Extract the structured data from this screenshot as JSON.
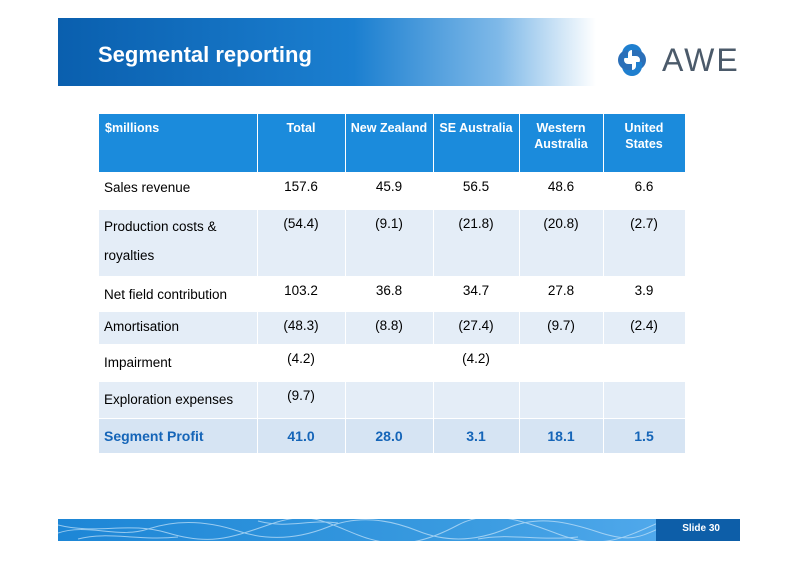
{
  "slide": {
    "title": "Segmental reporting",
    "logo_text": "AWE",
    "slide_number": "Slide 30"
  },
  "table": {
    "headers": [
      "$millions",
      "Total",
      "New Zealand",
      "SE Australia",
      "Western Australia",
      "United States"
    ],
    "rows": [
      {
        "label": "Sales revenue",
        "values": [
          "157.6",
          "45.9",
          "56.5",
          "48.6",
          "6.6"
        ]
      },
      {
        "label": "Production costs & royalties",
        "values": [
          "(54.4)",
          "(9.1)",
          "(21.8)",
          "(20.8)",
          "(2.7)"
        ]
      },
      {
        "label": "Net field contribution",
        "values": [
          "103.2",
          "36.8",
          "34.7",
          "27.8",
          "3.9"
        ]
      },
      {
        "label": "Amortisation",
        "values": [
          "(48.3)",
          "(8.8)",
          "(27.4)",
          "(9.7)",
          "(2.4)"
        ]
      },
      {
        "label": "Impairment",
        "values": [
          "(4.2)",
          "",
          "(4.2)",
          "",
          ""
        ]
      },
      {
        "label": "Exploration expenses",
        "values": [
          "(9.7)",
          "",
          "",
          "",
          ""
        ]
      },
      {
        "label": "Segment Profit",
        "values": [
          "41.0",
          "28.0",
          "3.1",
          "18.1",
          "1.5"
        ]
      }
    ]
  },
  "colors": {
    "header_blue": "#1b8bdc",
    "band_light": "#e4edf7",
    "profit_text": "#1565b8"
  }
}
